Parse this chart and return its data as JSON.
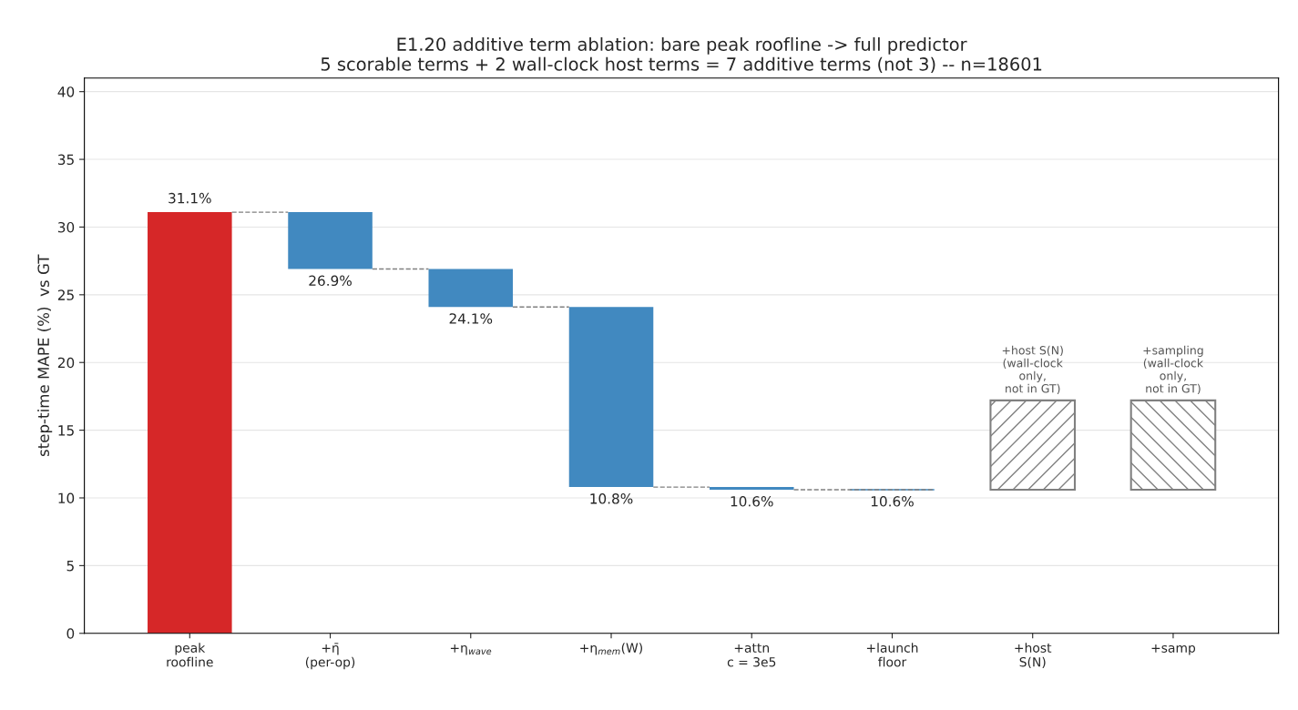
{
  "chart_data": {
    "type": "bar",
    "title": "E1.20 additive term ablation: bare peak roofline -> full predictor\n5 scorable terms + 2 wall-clock host terms = 7 additive terms (not 3) -- n=18601",
    "ylabel": "step-time MAPE (%)  vs GT",
    "categories": [
      "peak\nroofline",
      "+η̄\n(per-op)",
      "+η$_{wave}$",
      "+η$_{mem}$(W)",
      "+attn\nc = 3e5",
      "+launch\nfloor",
      "+host\nS(N)",
      "+samp"
    ],
    "series": [
      {
        "colors": [
          "#d62728",
          "#4189c0",
          "#4189c0",
          "#4189c0",
          "#4189c0",
          "#4189c0",
          null,
          null
        ],
        "values": [
          31.1,
          4.2,
          2.8,
          13.3,
          0.2,
          0,
          null,
          null
        ],
        "base": [
          0,
          26.9,
          24.1,
          10.8,
          10.6,
          10.6,
          null,
          null
        ]
      },
      {
        "color": "#808080",
        "values": [
          null,
          null,
          null,
          null,
          null,
          null,
          6.6,
          6.6
        ],
        "base": [
          null,
          null,
          null,
          null,
          null,
          null,
          10.6,
          10.6
        ]
      }
    ],
    "annotations": [
      {
        "text": "31.1%",
        "x": "peak\nroofline",
        "y": 31.1
      },
      {
        "text": "26.9%",
        "x": "+η̄\n(per-op)",
        "y": 26.9
      },
      {
        "text": "24.1%",
        "x": "+η$_{wave}$",
        "y": 24.1
      },
      {
        "text": "10.8%",
        "x": "+η$_{mem}$(W)",
        "y": 10.8
      },
      {
        "text": "10.6%",
        "x": "+attn\nc = 3e5",
        "y": 10.6
      },
      {
        "text": "10.6%",
        "x": "+launch\nfloor",
        "y": 10.6
      },
      {
        "text": "+host S(N)\n(wall-clock\nonly,\nnot in GT)",
        "x": "+host\nS(N)",
        "y": 17.2
      },
      {
        "text": "+sampling\n(wall-clock\nonly,\nnot in GT)",
        "x": "+samp",
        "y": 17.2
      }
    ],
    "ylim": [
      0,
      41
    ],
    "yticks": [
      0,
      5,
      10,
      15,
      20,
      25,
      30,
      35,
      40
    ],
    "grid": "y",
    "legend": false
  }
}
